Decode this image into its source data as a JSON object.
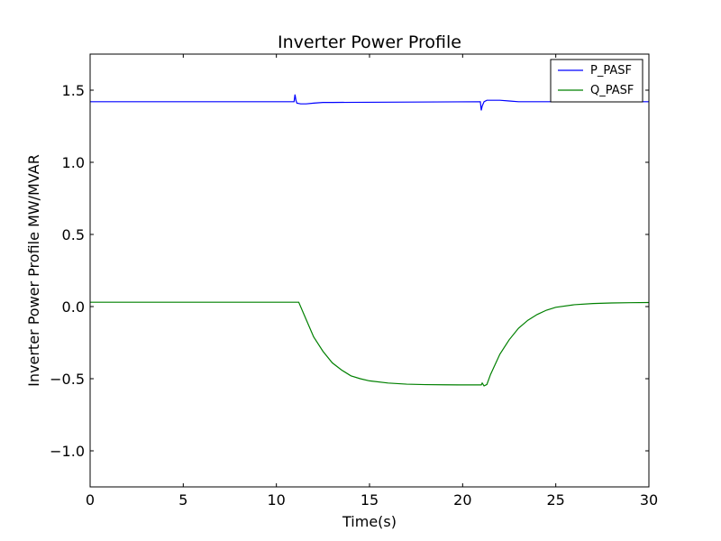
{
  "chart_data": {
    "type": "line",
    "title": "Inverter Power Profile",
    "xlabel": "Time(s)",
    "ylabel": "Inverter Power Profile MW/MVAR",
    "xlim": [
      0,
      30
    ],
    "ylim": [
      -1.25,
      1.75
    ],
    "xticks": [
      0,
      5,
      10,
      15,
      20,
      25,
      30
    ],
    "xtick_labels": [
      "0",
      "5",
      "10",
      "15",
      "20",
      "25",
      "30"
    ],
    "yticks": [
      -1.0,
      -0.5,
      0.0,
      0.5,
      1.0,
      1.5
    ],
    "ytick_labels": [
      "−1.0",
      "−0.5",
      "0.0",
      "0.5",
      "1.0",
      "1.5"
    ],
    "grid": false,
    "legend_position": "top-right",
    "series": [
      {
        "name": "P_PASF",
        "color": "#0000ff",
        "x": [
          0,
          10.95,
          11.0,
          11.05,
          11.1,
          11.3,
          11.6,
          12.0,
          12.5,
          13.0,
          20.95,
          21.0,
          21.05,
          21.15,
          21.3,
          21.6,
          22.0,
          22.5,
          23.0,
          23.5,
          30
        ],
        "y": [
          1.42,
          1.42,
          1.47,
          1.43,
          1.41,
          1.405,
          1.405,
          1.41,
          1.415,
          1.415,
          1.42,
          1.36,
          1.39,
          1.42,
          1.43,
          1.43,
          1.43,
          1.425,
          1.42,
          1.42,
          1.42
        ]
      },
      {
        "name": "Q_PASF",
        "color": "#008000",
        "x": [
          0,
          11.2,
          11.5,
          12.0,
          12.5,
          13.0,
          13.5,
          14.0,
          14.5,
          15.0,
          16.0,
          17.0,
          18.0,
          19.0,
          20.0,
          21.0,
          21.05,
          21.15,
          21.3,
          21.5,
          22.0,
          22.5,
          23.0,
          23.5,
          24.0,
          24.5,
          25.0,
          26.0,
          27.0,
          28.0,
          29.0,
          30.0
        ],
        "y": [
          0.03,
          0.03,
          -0.06,
          -0.21,
          -0.31,
          -0.39,
          -0.44,
          -0.48,
          -0.5,
          -0.515,
          -0.53,
          -0.538,
          -0.541,
          -0.542,
          -0.543,
          -0.543,
          -0.53,
          -0.55,
          -0.54,
          -0.47,
          -0.33,
          -0.23,
          -0.15,
          -0.095,
          -0.055,
          -0.025,
          -0.005,
          0.013,
          0.021,
          0.025,
          0.027,
          0.028
        ]
      }
    ]
  }
}
